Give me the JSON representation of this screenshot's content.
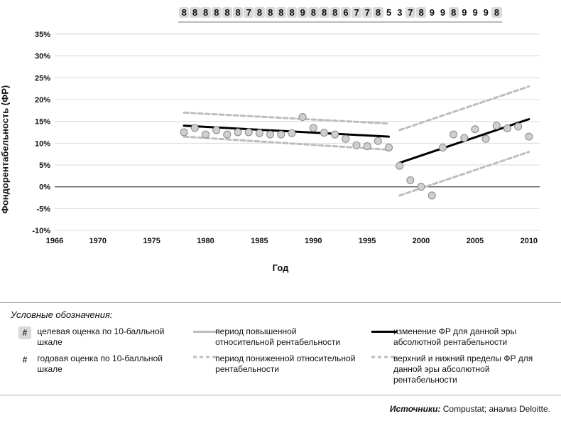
{
  "chart": {
    "type": "scatter-with-trend",
    "background_color": "#ffffff",
    "grid_color": "#d9d9d9",
    "axis_color": "#555555",
    "text_color": "#111111",
    "ylabel": "Фондорентабельность (ФР)",
    "xlabel": "Год",
    "label_fontsize": 13,
    "tick_fontsize": 11,
    "xlim": [
      1966,
      2011
    ],
    "ylim": [
      -10,
      35
    ],
    "xtick_step": 5,
    "xticks": [
      1966,
      1970,
      1975,
      1980,
      1985,
      1990,
      1995,
      2000,
      2005,
      2010
    ],
    "yticks": [
      -10,
      -5,
      0,
      5,
      10,
      15,
      20,
      25,
      30,
      35
    ],
    "ytick_format": "percent",
    "zero_emphasis": true,
    "era1": {
      "xstart": 1978,
      "xend": 1997,
      "trend": {
        "y_start": 14.0,
        "y_end": 11.5,
        "color": "#000000",
        "width": 3,
        "dash": "none"
      },
      "upper": {
        "y_start": 17.0,
        "y_end": 14.5,
        "color": "#bdbdbd",
        "width": 3,
        "dash": "6,4"
      },
      "lower": {
        "y_start": 11.5,
        "y_end": 8.5,
        "color": "#bdbdbd",
        "width": 3,
        "dash": "6,4"
      }
    },
    "era2": {
      "xstart": 1998,
      "xend": 2010,
      "trend": {
        "y_start": 5.5,
        "y_end": 15.5,
        "color": "#000000",
        "width": 3,
        "dash": "none"
      },
      "upper": {
        "y_start": 13.0,
        "y_end": 23.0,
        "color": "#bdbdbd",
        "width": 3,
        "dash": "6,4"
      },
      "lower": {
        "y_start": -2.0,
        "y_end": 8.0,
        "color": "#bdbdbd",
        "width": 3,
        "dash": "6,4"
      }
    },
    "scatter": {
      "marker_color": "#cfcfcf",
      "marker_stroke": "#888888",
      "marker_radius": 5,
      "points": [
        {
          "x": 1978,
          "y": 12.5
        },
        {
          "x": 1979,
          "y": 13.5
        },
        {
          "x": 1980,
          "y": 12.0
        },
        {
          "x": 1981,
          "y": 13.0
        },
        {
          "x": 1982,
          "y": 12.0
        },
        {
          "x": 1983,
          "y": 12.5
        },
        {
          "x": 1984,
          "y": 12.5
        },
        {
          "x": 1985,
          "y": 12.3
        },
        {
          "x": 1986,
          "y": 12.0
        },
        {
          "x": 1987,
          "y": 12.0
        },
        {
          "x": 1988,
          "y": 12.3
        },
        {
          "x": 1989,
          "y": 16.0
        },
        {
          "x": 1990,
          "y": 13.5
        },
        {
          "x": 1991,
          "y": 12.4
        },
        {
          "x": 1992,
          "y": 12.0
        },
        {
          "x": 1993,
          "y": 11.0
        },
        {
          "x": 1994,
          "y": 9.5
        },
        {
          "x": 1995,
          "y": 9.3
        },
        {
          "x": 1996,
          "y": 10.5
        },
        {
          "x": 1997,
          "y": 9.0
        },
        {
          "x": 1998,
          "y": 4.8
        },
        {
          "x": 1999,
          "y": 1.5
        },
        {
          "x": 2000,
          "y": 0.0
        },
        {
          "x": 2001,
          "y": -2.0
        },
        {
          "x": 2002,
          "y": 9.0
        },
        {
          "x": 2003,
          "y": 12.0
        },
        {
          "x": 2004,
          "y": 11.2
        },
        {
          "x": 2005,
          "y": 13.2
        },
        {
          "x": 2006,
          "y": 11.0
        },
        {
          "x": 2007,
          "y": 14.0
        },
        {
          "x": 2008,
          "y": 13.4
        },
        {
          "x": 2009,
          "y": 13.8
        },
        {
          "x": 2010,
          "y": 11.5
        }
      ]
    }
  },
  "top_scores": {
    "start_year": 1978,
    "values": [
      {
        "v": "8",
        "boxed": true
      },
      {
        "v": "8",
        "boxed": true
      },
      {
        "v": "8",
        "boxed": true
      },
      {
        "v": "8",
        "boxed": true
      },
      {
        "v": "8",
        "boxed": true
      },
      {
        "v": "8",
        "boxed": true
      },
      {
        "v": "7",
        "boxed": true
      },
      {
        "v": "8",
        "boxed": true
      },
      {
        "v": "8",
        "boxed": true
      },
      {
        "v": "8",
        "boxed": true
      },
      {
        "v": "8",
        "boxed": true
      },
      {
        "v": "9",
        "boxed": true
      },
      {
        "v": "8",
        "boxed": true
      },
      {
        "v": "8",
        "boxed": true
      },
      {
        "v": "8",
        "boxed": true
      },
      {
        "v": "6",
        "boxed": true
      },
      {
        "v": "7",
        "boxed": true
      },
      {
        "v": "7",
        "boxed": true
      },
      {
        "v": "8",
        "boxed": true
      },
      {
        "v": "5",
        "boxed": false
      },
      {
        "v": "3",
        "boxed": false
      },
      {
        "v": "7",
        "boxed": true
      },
      {
        "v": "8",
        "boxed": true
      },
      {
        "v": "9",
        "boxed": false
      },
      {
        "v": "9",
        "boxed": false
      },
      {
        "v": "8",
        "boxed": true
      },
      {
        "v": "9",
        "boxed": false
      },
      {
        "v": "9",
        "boxed": false
      },
      {
        "v": "9",
        "boxed": false
      },
      {
        "v": "8",
        "boxed": true
      }
    ]
  },
  "legend": {
    "title": "Условные обозначения:",
    "items": {
      "target_score": "целевая оценка по 10-балльной шкале",
      "annual_score": "годовая оценка по 10-балльной шкале",
      "high_rel": "период повышенной относительной рентабельности",
      "low_rel": "период пониженной относительной рентабельности",
      "trend_abs": "изменение ФР для данной эры абсолютной рентабельности",
      "bounds_abs": "верхний и нижний пределы ФР для данной эры абсолютной рентабельности"
    },
    "colors": {
      "solid_grey": "#bdbdbd",
      "dash_grey": "#bdbdbd",
      "solid_black": "#000000"
    }
  },
  "sources": {
    "label": "Источники:",
    "text": "Compustat; анализ Deloitte."
  }
}
